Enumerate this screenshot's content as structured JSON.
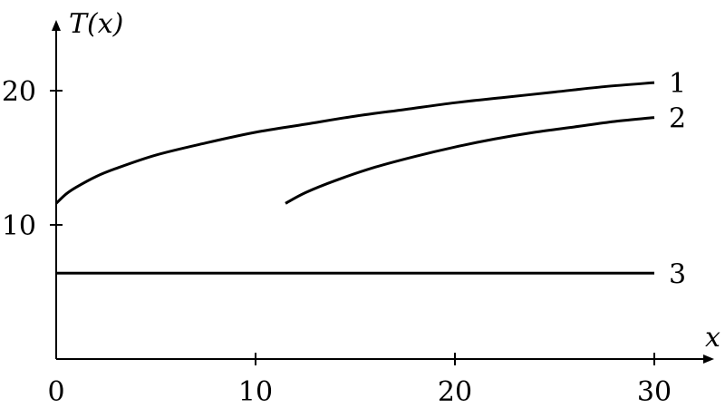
{
  "chart_data": {
    "type": "line",
    "xlabel": "x",
    "ylabel": "T(x)",
    "xlim": [
      0,
      33
    ],
    "ylim": [
      0,
      25
    ],
    "x_ticks": [
      {
        "value": 0,
        "label": "0"
      },
      {
        "value": 10,
        "label": "10"
      },
      {
        "value": 20,
        "label": "20"
      },
      {
        "value": 30,
        "label": "30"
      }
    ],
    "y_ticks": [
      {
        "value": 10,
        "label": "10"
      },
      {
        "value": 20,
        "label": "20"
      }
    ],
    "grid": false,
    "series": [
      {
        "name": "1",
        "x": [
          0,
          0.5,
          1,
          2,
          3,
          5,
          7.5,
          10,
          12.5,
          15,
          17.5,
          20,
          22.5,
          25,
          27.5,
          30
        ],
        "y": [
          11.6,
          12.3,
          12.8,
          13.6,
          14.2,
          15.2,
          16.1,
          16.9,
          17.5,
          18.1,
          18.6,
          19.1,
          19.5,
          19.9,
          20.3,
          20.6
        ]
      },
      {
        "name": "2",
        "x": [
          11.5,
          12.5,
          14,
          16,
          18,
          20,
          22,
          24,
          26,
          28,
          30
        ],
        "y": [
          11.6,
          12.4,
          13.3,
          14.3,
          15.1,
          15.8,
          16.4,
          16.9,
          17.3,
          17.7,
          18.0
        ]
      },
      {
        "name": "3",
        "x": [
          0,
          30
        ],
        "y": [
          6.4,
          6.4
        ]
      }
    ]
  }
}
